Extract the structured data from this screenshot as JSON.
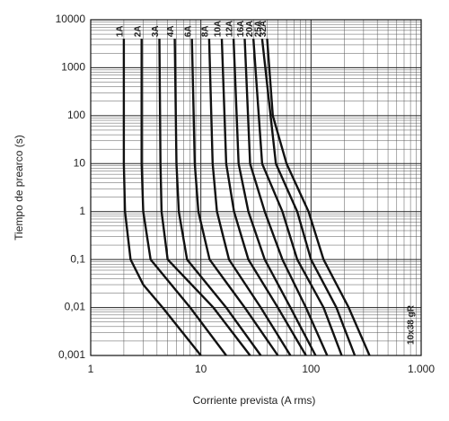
{
  "chart_data": {
    "type": "line",
    "x_label": "Corriente prevista (A rms)",
    "y_label": "Tiempo de prearco (s)",
    "annotation": "10x38 gR",
    "xscale": "log",
    "yscale": "log",
    "grid": true,
    "minor_grid": true,
    "color": "#111111",
    "xlim": [
      1,
      1000
    ],
    "xticks": [
      1,
      10,
      100,
      {
        "value": 1000,
        "label": "1.000"
      }
    ],
    "ylim": [
      0.001,
      10000
    ],
    "yticks": [
      {
        "value": 0.001,
        "label": "0,001"
      },
      {
        "value": 0.01,
        "label": "0,01"
      },
      {
        "value": 0.1,
        "label": "0,1"
      },
      1,
      10,
      100,
      1000,
      10000
    ],
    "series": [
      {
        "name": "1A",
        "x": [
          2,
          2,
          2.05,
          2.3,
          3,
          4.5,
          10
        ],
        "values": [
          4000,
          10,
          1,
          0.1,
          0.03,
          0.01,
          0.001
        ]
      },
      {
        "name": "2A",
        "x": [
          2.9,
          2.9,
          3.0,
          3.5,
          8,
          17
        ],
        "values": [
          4000,
          10,
          1,
          0.1,
          0.01,
          0.001
        ]
      },
      {
        "name": "3A",
        "x": [
          4.2,
          4.3,
          4.4,
          5,
          13,
          28
        ],
        "values": [
          4000,
          10,
          1,
          0.1,
          0.01,
          0.001
        ]
      },
      {
        "name": "4A",
        "x": [
          5.8,
          6.0,
          6.3,
          7.5,
          17,
          35
        ],
        "values": [
          4000,
          10,
          1,
          0.1,
          0.01,
          0.001
        ]
      },
      {
        "name": "6A",
        "x": [
          8.3,
          8.8,
          9.5,
          12,
          25,
          50
        ],
        "values": [
          4000,
          10,
          1,
          0.1,
          0.01,
          0.001
        ]
      },
      {
        "name": "8A",
        "x": [
          11.9,
          12.8,
          14,
          18,
          35,
          65
        ],
        "values": [
          4000,
          10,
          1,
          0.1,
          0.01,
          0.001
        ]
      },
      {
        "name": "10A",
        "x": [
          15.5,
          17,
          20,
          27,
          50,
          90
        ],
        "values": [
          4000,
          10,
          1,
          0.1,
          0.01,
          0.001
        ]
      },
      {
        "name": "12A",
        "x": [
          19.8,
          22,
          27,
          38,
          65,
          110
        ],
        "values": [
          4000,
          10,
          1,
          0.1,
          0.01,
          0.001
        ]
      },
      {
        "name": "16A",
        "x": [
          25,
          28,
          38,
          55,
          90,
          140
        ],
        "values": [
          4000,
          10,
          1,
          0.1,
          0.01,
          0.001
        ]
      },
      {
        "name": "20A",
        "x": [
          30,
          36,
          55,
          75,
          130,
          190
        ],
        "values": [
          4000,
          10,
          1,
          0.1,
          0.01,
          0.001
        ]
      },
      {
        "name": "25A",
        "x": [
          36,
          48,
          75,
          100,
          170,
          250
        ],
        "values": [
          4000,
          10,
          1,
          0.1,
          0.01,
          0.001
        ]
      },
      {
        "name": "32A",
        "x": [
          40,
          45,
          60,
          95,
          130,
          220,
          340
        ],
        "values": [
          4000,
          100,
          10,
          1,
          0.1,
          0.01,
          0.001
        ]
      }
    ]
  }
}
